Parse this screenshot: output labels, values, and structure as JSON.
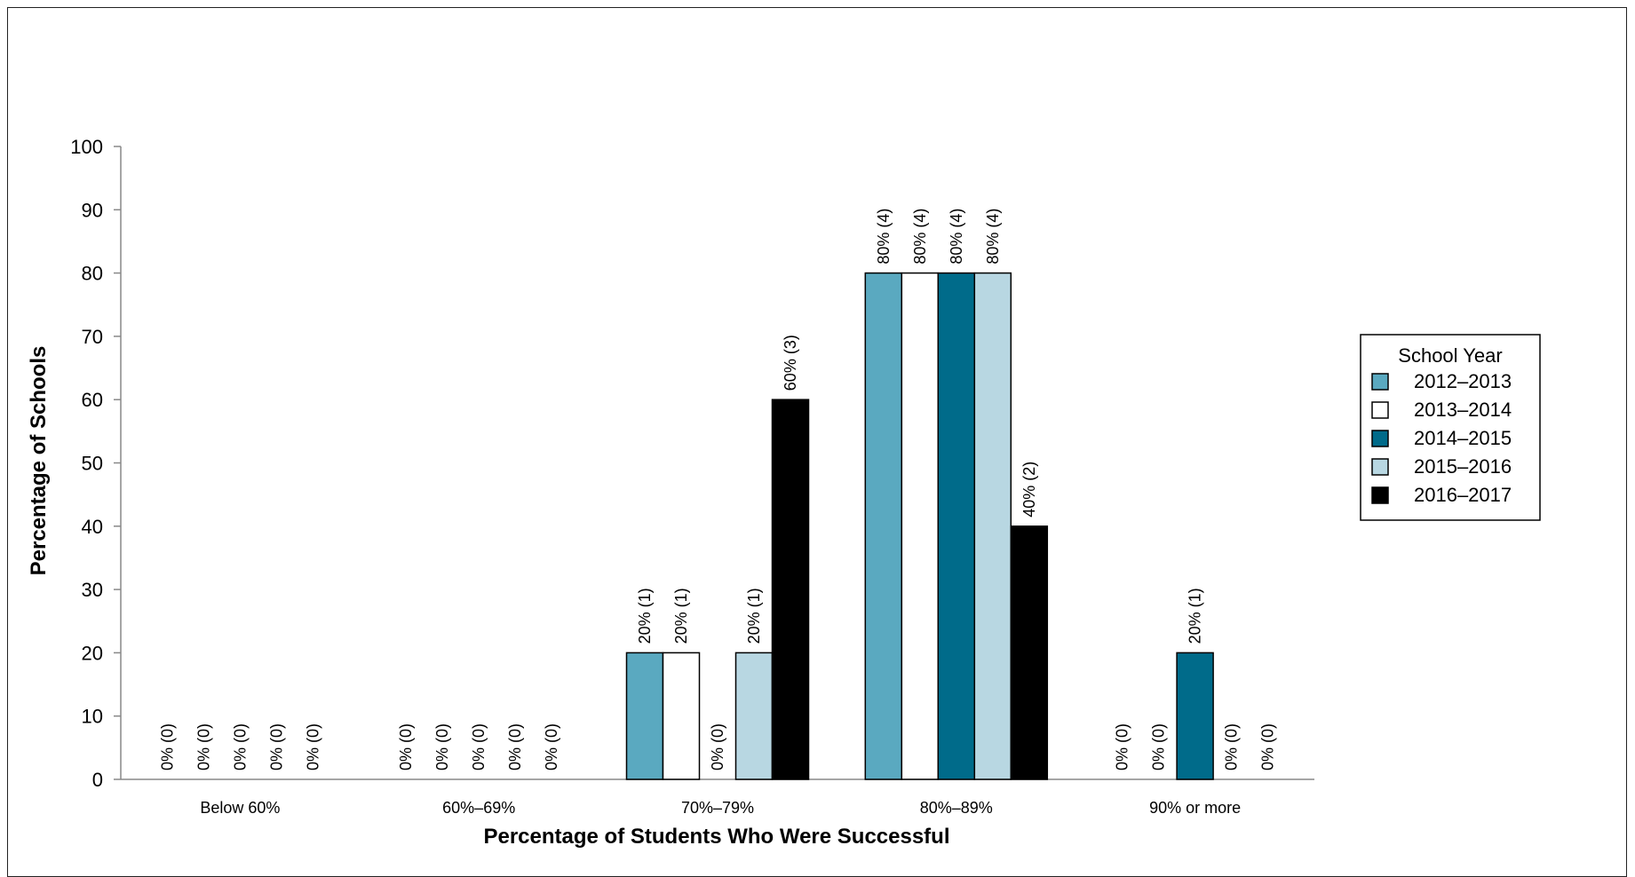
{
  "chart_data": {
    "type": "bar",
    "title": "",
    "xlabel": "Percentage of Students Who Were Successful",
    "ylabel": "Percentage of Schools",
    "ylim": [
      0,
      100
    ],
    "yticks": [
      0,
      10,
      20,
      30,
      40,
      50,
      60,
      70,
      80,
      90,
      100
    ],
    "grid": false,
    "legend_position": "right",
    "legend_title": "School Year",
    "categories": [
      "Below 60%",
      "60%–69%",
      "70%–79%",
      "80%–89%",
      "90% or more"
    ],
    "series": [
      {
        "name": "2012–2013",
        "color": "#5aa9c0",
        "values": [
          0,
          0,
          20,
          80,
          0
        ],
        "labels": [
          "0% (0)",
          "0% (0)",
          "20% (1)",
          "80% (4)",
          "0% (0)"
        ]
      },
      {
        "name": "2013–2014",
        "color": "#ffffff",
        "values": [
          0,
          0,
          20,
          80,
          0
        ],
        "labels": [
          "0% (0)",
          "0% (0)",
          "20% (1)",
          "80% (4)",
          "0% (0)"
        ]
      },
      {
        "name": "2014–2015",
        "color": "#006b8a",
        "values": [
          0,
          0,
          0,
          80,
          20
        ],
        "labels": [
          "0% (0)",
          "0% (0)",
          "0% (0)",
          "80% (4)",
          "20% (1)"
        ]
      },
      {
        "name": "2015–2016",
        "color": "#b8d7e2",
        "values": [
          0,
          0,
          20,
          80,
          0
        ],
        "labels": [
          "0% (0)",
          "0% (0)",
          "20% (1)",
          "80% (4)",
          "0% (0)"
        ]
      },
      {
        "name": "2016–2017",
        "color": "#000000",
        "values": [
          0,
          0,
          60,
          40,
          0
        ],
        "labels": [
          "0% (0)",
          "0% (0)",
          "60% (3)",
          "40% (2)",
          "0% (0)"
        ]
      }
    ]
  }
}
